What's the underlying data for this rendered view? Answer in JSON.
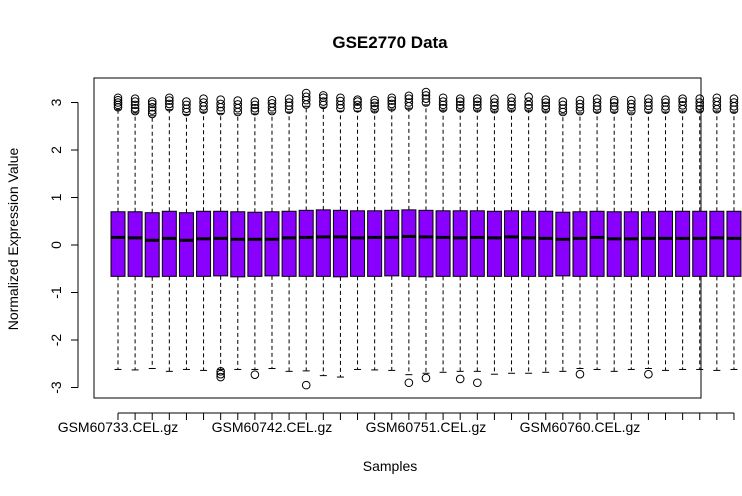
{
  "chart_data": {
    "type": "box",
    "title": "GSE2770 Data",
    "xlabel": "Samples",
    "ylabel": "Normalized Expression Value",
    "ylim": [
      -3.2,
      3.3
    ],
    "y_ticks": [
      -3,
      -2,
      -1,
      0,
      1,
      2,
      3
    ],
    "box_color": "#8A00FF",
    "grid": false,
    "legend": "none",
    "x_tick_labels": [
      {
        "index": 0,
        "label": "GSM60733.CEL.gz"
      },
      {
        "index": 9,
        "label": "GSM60742.CEL.gz"
      },
      {
        "index": 18,
        "label": "GSM60751.CEL.gz"
      },
      {
        "index": 27,
        "label": "GSM60760.CEL.gz"
      }
    ],
    "series": [
      {
        "q1": -0.66,
        "median": 0.16,
        "q3": 0.7,
        "whisker_low": -2.62,
        "whisker_high": 2.85,
        "outliers_high": [
          2.9,
          2.95,
          3.0,
          3.05,
          3.1
        ],
        "outliers_low": []
      },
      {
        "q1": -0.66,
        "median": 0.15,
        "q3": 0.7,
        "whisker_low": -2.63,
        "whisker_high": 2.78,
        "outliers_high": [
          2.82,
          2.88,
          2.95,
          3.02,
          3.08
        ],
        "outliers_low": []
      },
      {
        "q1": -0.67,
        "median": 0.1,
        "q3": 0.68,
        "whisker_low": -2.6,
        "whisker_high": 2.72,
        "outliers_high": [
          2.76,
          2.83,
          2.9,
          2.97,
          3.02
        ],
        "outliers_low": []
      },
      {
        "q1": -0.66,
        "median": 0.14,
        "q3": 0.71,
        "whisker_low": -2.66,
        "whisker_high": 2.85,
        "outliers_high": [
          2.9,
          2.97,
          3.04,
          3.1
        ],
        "outliers_low": []
      },
      {
        "q1": -0.66,
        "median": 0.1,
        "q3": 0.68,
        "whisker_low": -2.62,
        "whisker_high": 2.75,
        "outliers_high": [
          2.8,
          2.87,
          2.95,
          3.02
        ],
        "outliers_low": []
      },
      {
        "q1": -0.66,
        "median": 0.13,
        "q3": 0.71,
        "whisker_low": -2.64,
        "whisker_high": 2.8,
        "outliers_high": [
          2.85,
          2.92,
          3.0,
          3.08
        ],
        "outliers_low": []
      },
      {
        "q1": -0.65,
        "median": 0.14,
        "q3": 0.71,
        "whisker_low": -2.62,
        "whisker_high": 2.77,
        "outliers_high": [
          2.82,
          2.9,
          2.97,
          3.06
        ],
        "outliers_low": [
          -2.66,
          -2.72,
          -2.78
        ]
      },
      {
        "q1": -0.67,
        "median": 0.12,
        "q3": 0.7,
        "whisker_low": -2.62,
        "whisker_high": 2.76,
        "outliers_high": [
          2.8,
          2.88,
          2.96,
          3.04
        ],
        "outliers_low": []
      },
      {
        "q1": -0.66,
        "median": 0.12,
        "q3": 0.69,
        "whisker_low": -2.62,
        "whisker_high": 2.76,
        "outliers_high": [
          2.82,
          2.88,
          2.95,
          3.02
        ],
        "outliers_low": [
          -2.73
        ]
      },
      {
        "q1": -0.65,
        "median": 0.12,
        "q3": 0.7,
        "whisker_low": -2.6,
        "whisker_high": 2.78,
        "outliers_high": [
          2.82,
          2.9,
          2.98,
          3.05
        ],
        "outliers_low": []
      },
      {
        "q1": -0.66,
        "median": 0.15,
        "q3": 0.71,
        "whisker_low": -2.66,
        "whisker_high": 2.8,
        "outliers_high": [
          2.85,
          2.93,
          3.0,
          3.08
        ],
        "outliers_low": []
      },
      {
        "q1": -0.66,
        "median": 0.16,
        "q3": 0.73,
        "whisker_low": -2.65,
        "whisker_high": 2.92,
        "outliers_high": [
          2.96,
          3.05,
          3.12,
          3.2
        ],
        "outliers_low": [
          -2.95
        ]
      },
      {
        "q1": -0.66,
        "median": 0.17,
        "q3": 0.74,
        "whisker_low": -2.75,
        "whisker_high": 2.9,
        "outliers_high": [
          2.95,
          3.02,
          3.1,
          3.15
        ],
        "outliers_low": []
      },
      {
        "q1": -0.67,
        "median": 0.17,
        "q3": 0.73,
        "whisker_low": -2.78,
        "whisker_high": 2.82,
        "outliers_high": [
          2.88,
          2.95,
          3.03,
          3.1
        ],
        "outliers_low": []
      },
      {
        "q1": -0.66,
        "median": 0.15,
        "q3": 0.72,
        "whisker_low": -2.62,
        "whisker_high": 2.82,
        "outliers_high": [
          2.88,
          2.95,
          3.02,
          3.06
        ],
        "outliers_low": []
      },
      {
        "q1": -0.66,
        "median": 0.16,
        "q3": 0.72,
        "whisker_low": -2.63,
        "whisker_high": 2.82,
        "outliers_high": [
          2.86,
          2.93,
          2.99,
          3.05
        ],
        "outliers_low": []
      },
      {
        "q1": -0.65,
        "median": 0.16,
        "q3": 0.73,
        "whisker_low": -2.64,
        "whisker_high": 2.86,
        "outliers_high": [
          2.9,
          2.97,
          3.04,
          3.1
        ],
        "outliers_low": []
      },
      {
        "q1": -0.66,
        "median": 0.18,
        "q3": 0.74,
        "whisker_low": -2.73,
        "whisker_high": 2.88,
        "outliers_high": [
          2.92,
          3.0,
          3.08,
          3.14
        ],
        "outliers_low": [
          -2.9
        ]
      },
      {
        "q1": -0.67,
        "median": 0.17,
        "q3": 0.73,
        "whisker_low": -2.7,
        "whisker_high": 2.95,
        "outliers_high": [
          3.0,
          3.08,
          3.15,
          3.22
        ],
        "outliers_low": [
          -2.8
        ]
      },
      {
        "q1": -0.66,
        "median": 0.16,
        "q3": 0.72,
        "whisker_low": -2.68,
        "whisker_high": 2.84,
        "outliers_high": [
          2.88,
          2.95,
          3.02,
          3.1
        ],
        "outliers_low": []
      },
      {
        "q1": -0.66,
        "median": 0.15,
        "q3": 0.72,
        "whisker_low": -2.66,
        "whisker_high": 2.84,
        "outliers_high": [
          2.88,
          2.95,
          3.02,
          3.08
        ],
        "outliers_low": [
          -2.82
        ]
      },
      {
        "q1": -0.66,
        "median": 0.16,
        "q3": 0.72,
        "whisker_low": -2.66,
        "whisker_high": 2.84,
        "outliers_high": [
          2.88,
          2.95,
          3.02,
          3.08
        ],
        "outliers_low": [
          -2.9
        ]
      },
      {
        "q1": -0.66,
        "median": 0.15,
        "q3": 0.71,
        "whisker_low": -2.72,
        "whisker_high": 2.82,
        "outliers_high": [
          2.86,
          2.93,
          3.0,
          3.08
        ],
        "outliers_low": []
      },
      {
        "q1": -0.66,
        "median": 0.17,
        "q3": 0.72,
        "whisker_low": -2.7,
        "whisker_high": 2.84,
        "outliers_high": [
          2.88,
          2.95,
          3.02,
          3.1
        ],
        "outliers_low": []
      },
      {
        "q1": -0.66,
        "median": 0.15,
        "q3": 0.71,
        "whisker_low": -2.7,
        "whisker_high": 2.84,
        "outliers_high": [
          2.88,
          2.95,
          3.02,
          3.12
        ],
        "outliers_low": []
      },
      {
        "q1": -0.66,
        "median": 0.14,
        "q3": 0.71,
        "whisker_low": -2.68,
        "whisker_high": 2.82,
        "outliers_high": [
          2.86,
          2.93,
          3.0,
          3.06
        ],
        "outliers_low": []
      },
      {
        "q1": -0.65,
        "median": 0.12,
        "q3": 0.69,
        "whisker_low": -2.66,
        "whisker_high": 2.76,
        "outliers_high": [
          2.8,
          2.87,
          2.95,
          3.02
        ],
        "outliers_low": []
      },
      {
        "q1": -0.66,
        "median": 0.14,
        "q3": 0.7,
        "whisker_low": -2.6,
        "whisker_high": 2.78,
        "outliers_high": [
          2.82,
          2.9,
          2.97,
          3.05
        ],
        "outliers_low": [
          -2.72
        ]
      },
      {
        "q1": -0.66,
        "median": 0.16,
        "q3": 0.71,
        "whisker_low": -2.62,
        "whisker_high": 2.8,
        "outliers_high": [
          2.85,
          2.92,
          3.0,
          3.08
        ],
        "outliers_low": []
      },
      {
        "q1": -0.66,
        "median": 0.13,
        "q3": 0.7,
        "whisker_low": -2.66,
        "whisker_high": 2.8,
        "outliers_high": [
          2.85,
          2.92,
          3.0,
          3.05
        ],
        "outliers_low": []
      },
      {
        "q1": -0.66,
        "median": 0.13,
        "q3": 0.7,
        "whisker_low": -2.62,
        "whisker_high": 2.78,
        "outliers_high": [
          2.82,
          2.9,
          2.97,
          3.05
        ],
        "outliers_low": []
      },
      {
        "q1": -0.66,
        "median": 0.14,
        "q3": 0.7,
        "whisker_low": -2.6,
        "whisker_high": 2.8,
        "outliers_high": [
          2.85,
          2.93,
          3.0,
          3.08
        ],
        "outliers_low": [
          -2.72
        ]
      },
      {
        "q1": -0.66,
        "median": 0.14,
        "q3": 0.71,
        "whisker_low": -2.64,
        "whisker_high": 2.8,
        "outliers_high": [
          2.85,
          2.92,
          3.0,
          3.06
        ],
        "outliers_low": []
      },
      {
        "q1": -0.66,
        "median": 0.14,
        "q3": 0.71,
        "whisker_low": -2.62,
        "whisker_high": 2.82,
        "outliers_high": [
          2.86,
          2.94,
          3.02,
          3.08
        ],
        "outliers_low": []
      },
      {
        "q1": -0.66,
        "median": 0.14,
        "q3": 0.71,
        "whisker_low": -2.62,
        "whisker_high": 2.82,
        "outliers_high": [
          2.86,
          2.93,
          3.0,
          3.08
        ],
        "outliers_low": []
      },
      {
        "q1": -0.66,
        "median": 0.15,
        "q3": 0.71,
        "whisker_low": -2.64,
        "whisker_high": 2.82,
        "outliers_high": [
          2.86,
          2.94,
          3.02,
          3.1
        ],
        "outliers_low": []
      },
      {
        "q1": -0.66,
        "median": 0.14,
        "q3": 0.71,
        "whisker_low": -2.62,
        "whisker_high": 2.8,
        "outliers_high": [
          2.85,
          2.92,
          3.0,
          3.08
        ],
        "outliers_low": []
      }
    ]
  }
}
